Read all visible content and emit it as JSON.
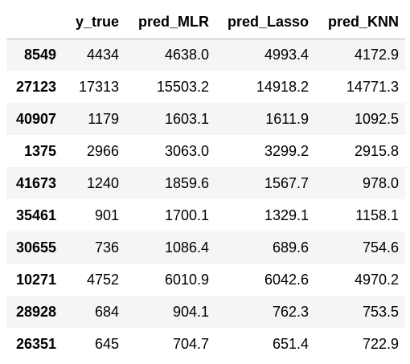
{
  "table": {
    "columns": [
      "",
      "y_true",
      "pred_MLR",
      "pred_Lasso",
      "pred_KNN"
    ],
    "rows": [
      {
        "index": "8549",
        "cells": [
          "4434",
          "4638.0",
          "4993.4",
          "4172.9"
        ]
      },
      {
        "index": "27123",
        "cells": [
          "17313",
          "15503.2",
          "14918.2",
          "14771.3"
        ]
      },
      {
        "index": "40907",
        "cells": [
          "1179",
          "1603.1",
          "1611.9",
          "1092.5"
        ]
      },
      {
        "index": "1375",
        "cells": [
          "2966",
          "3063.0",
          "3299.2",
          "2915.8"
        ]
      },
      {
        "index": "41673",
        "cells": [
          "1240",
          "1859.6",
          "1567.7",
          "978.0"
        ]
      },
      {
        "index": "35461",
        "cells": [
          "901",
          "1700.1",
          "1329.1",
          "1158.1"
        ]
      },
      {
        "index": "30655",
        "cells": [
          "736",
          "1086.4",
          "689.6",
          "754.6"
        ]
      },
      {
        "index": "10271",
        "cells": [
          "4752",
          "6010.9",
          "6042.6",
          "4970.2"
        ]
      },
      {
        "index": "28928",
        "cells": [
          "684",
          "904.1",
          "762.3",
          "753.5"
        ]
      },
      {
        "index": "26351",
        "cells": [
          "645",
          "704.7",
          "651.4",
          "722.9"
        ]
      }
    ]
  },
  "colors": {
    "stripe": "#f5f5f5",
    "header_border": "#bdbdbd"
  }
}
